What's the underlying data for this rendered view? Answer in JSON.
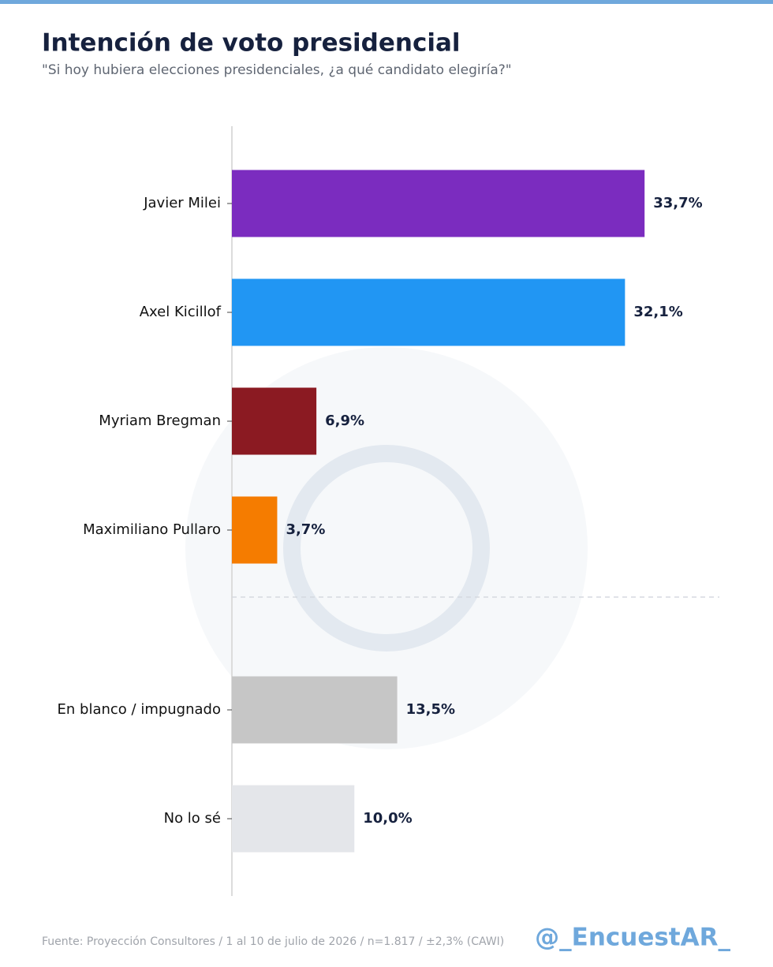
{
  "chart_data": {
    "type": "barh",
    "title": "Intención de voto presidencial",
    "subtitle": "\"Si hoy hubiera elecciones presidenciales, ¿a qué candidato elegiría?\"",
    "categories": [
      "Javier Milei",
      "Axel Kicillof",
      "Myriam Bregman",
      "Maximiliano Pullaro",
      "En blanco / impugnado",
      "No lo sé"
    ],
    "values": [
      33.7,
      32.1,
      6.9,
      3.7,
      13.5,
      10.0
    ],
    "value_labels": [
      "33,7%",
      "32,1%",
      "6,9%",
      "3,7%",
      "13,5%",
      "10,0%"
    ],
    "colors": [
      "#7b2cbf",
      "#2196f3",
      "#8b1a22",
      "#f57c00",
      "#c6c6c6",
      "#e4e6ea"
    ],
    "xlim": [
      0,
      40
    ],
    "source": "Fuente: Proyección Consultores / 1 al 10 de julio de 2026 / n=1.817 / ±2,3% (CAWI)",
    "credit": "@_EncuestAR_"
  }
}
